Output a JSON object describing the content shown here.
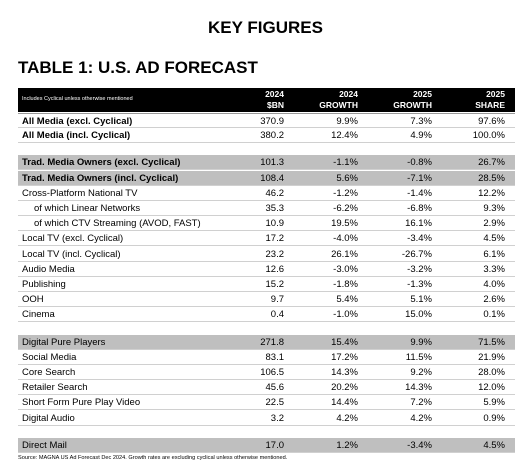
{
  "header": {
    "title": "KEY FIGURES",
    "table_title": "TABLE 1: U.S. AD FORECAST"
  },
  "table": {
    "note": "Includes Cyclical unless otherwise mentioned",
    "columns": [
      [
        "2024",
        "$BN"
      ],
      [
        "2024",
        "GROWTH"
      ],
      [
        "2025",
        "GROWTH"
      ],
      [
        "2025",
        "SHARE"
      ]
    ],
    "groups": [
      {
        "rows": [
          [
            "All Media (excl. Cyclical)",
            "370.9",
            "9.9%",
            "7.3%",
            "97.6%"
          ],
          [
            "All Media (incl. Cyclical)",
            "380.2",
            "12.4%",
            "4.9%",
            "100.0%"
          ]
        ]
      },
      {
        "rows": [
          [
            "Trad. Media Owners (excl. Cyclical)",
            "101.3",
            "-1.1%",
            "-0.8%",
            "26.7%"
          ],
          [
            "Trad. Media Owners (incl. Cyclical)",
            "108.4",
            "5.6%",
            "-7.1%",
            "28.5%"
          ],
          [
            "Cross-Platform National TV",
            "46.2",
            "-1.2%",
            "-1.4%",
            "12.2%"
          ],
          [
            "of which Linear Networks",
            "35.3",
            "-6.2%",
            "-6.8%",
            "9.3%"
          ],
          [
            "of which CTV Streaming (AVOD, FAST)",
            "10.9",
            "19.5%",
            "16.1%",
            "2.9%"
          ],
          [
            "Local TV (excl. Cyclical)",
            "17.2",
            "-4.0%",
            "-3.4%",
            "4.5%"
          ],
          [
            "Local TV (incl. Cyclical)",
            "23.2",
            "26.1%",
            "-26.7%",
            "6.1%"
          ],
          [
            "Audio Media",
            "12.6",
            "-3.0%",
            "-3.2%",
            "3.3%"
          ],
          [
            "Publishing",
            "15.2",
            "-1.8%",
            "-1.3%",
            "4.0%"
          ],
          [
            "OOH",
            "9.7",
            "5.4%",
            "5.1%",
            "2.6%"
          ],
          [
            "Cinema",
            "0.4",
            "-1.0%",
            "15.0%",
            "0.1%"
          ]
        ]
      },
      {
        "rows": [
          [
            "Digital Pure Players",
            "271.8",
            "15.4%",
            "9.9%",
            "71.5%"
          ],
          [
            "Social Media",
            "83.1",
            "17.2%",
            "11.5%",
            "21.9%"
          ],
          [
            "Core Search",
            "106.5",
            "14.3%",
            "9.2%",
            "28.0%"
          ],
          [
            "Retailer Search",
            "45.6",
            "20.2%",
            "14.3%",
            "12.0%"
          ],
          [
            "Short Form Pure Play Video",
            "22.5",
            "14.4%",
            "7.2%",
            "5.9%"
          ],
          [
            "Digital Audio",
            "3.2",
            "4.2%",
            "4.2%",
            "0.9%"
          ]
        ]
      },
      {
        "rows": [
          [
            "Direct Mail",
            "17.0",
            "1.2%",
            "-3.4%",
            "4.5%"
          ]
        ]
      }
    ]
  },
  "footer": {
    "source": "Source: MAGNA US Ad Forecast Dec 2024. Growth rates are excluding cyclical unless otherwise mentioned."
  }
}
